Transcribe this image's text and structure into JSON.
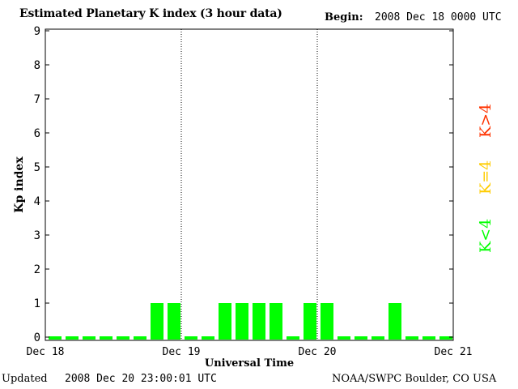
{
  "header": {
    "title": "Estimated Planetary K index (3 hour data)",
    "begin_label": "Begin:",
    "begin_value": "2008 Dec 18 0000 UTC"
  },
  "footer": {
    "updated_label": "Updated",
    "updated_value": "2008 Dec 20 23:00:01 UTC",
    "credit": "NOAA/SWPC Boulder, CO USA"
  },
  "legend": {
    "high": "K>4",
    "equal": "K=4",
    "low": "K<4"
  },
  "colors": {
    "low": "#00ff00",
    "equal": "#ffcc00",
    "high": "#ff3300",
    "axis": "#000000"
  },
  "chart_data": {
    "type": "bar",
    "xlabel": "Universal Time",
    "ylabel": "Kp index",
    "ylim": [
      0,
      9
    ],
    "yticks": [
      "0",
      "1",
      "2",
      "3",
      "4",
      "5",
      "6",
      "7",
      "8",
      "9"
    ],
    "xticks": [
      "Dec 18",
      "Dec 19",
      "Dec 20",
      "Dec 21"
    ],
    "categories": [
      "Dec 18 00",
      "Dec 18 03",
      "Dec 18 06",
      "Dec 18 09",
      "Dec 18 12",
      "Dec 18 15",
      "Dec 18 18",
      "Dec 18 21",
      "Dec 19 00",
      "Dec 19 03",
      "Dec 19 06",
      "Dec 19 09",
      "Dec 19 12",
      "Dec 19 15",
      "Dec 19 18",
      "Dec 19 21",
      "Dec 20 00",
      "Dec 20 03",
      "Dec 20 06",
      "Dec 20 09",
      "Dec 20 12",
      "Dec 20 15",
      "Dec 20 18",
      "Dec 20 21"
    ],
    "values": [
      0,
      0,
      0,
      0,
      0,
      0,
      1,
      1,
      0,
      0,
      1,
      1,
      1,
      1,
      0,
      1,
      1,
      0,
      0,
      0,
      1,
      0,
      0,
      0
    ],
    "grid": "vertical day separators"
  }
}
